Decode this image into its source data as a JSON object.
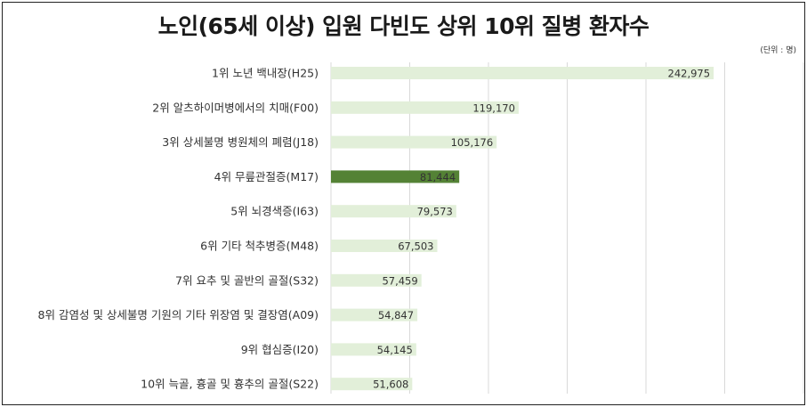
{
  "chart_data": {
    "type": "bar",
    "orientation": "horizontal",
    "title": "노인(65세 이상) 입원 다빈도 상위 10위 질병 환자수",
    "unit_label": "(단위 : 명)",
    "categories": [
      "1위 노년 백내장(H25)",
      "2위 알츠하이머병에서의 치매(F00)",
      "3위 상세불명 병원체의 폐렴(J18)",
      "4위 무릎관절증(M17)",
      "5위 뇌경색증(I63)",
      "6위 기타 척추병증(M48)",
      "7위 요추 및 골반의 골절(S32)",
      "8위 감염성 및 상세불명 기원의 기타 위장염 및 결장염(A09)",
      "9위 협심증(I20)",
      "10위 늑골, 흉골 및 흉추의 골절(S22)"
    ],
    "values": [
      242975,
      119170,
      105176,
      81444,
      79573,
      67503,
      57459,
      54847,
      54145,
      51608
    ],
    "value_labels": [
      "242,975",
      "119,170",
      "105,176",
      "81,444",
      "79,573",
      "67,503",
      "57,459",
      "54,847",
      "54,145",
      "51,608"
    ],
    "highlight_index": 3,
    "xlim": [
      0,
      300000
    ],
    "grid": true,
    "colors": {
      "bar": "#e2efd9",
      "highlight": "#548235",
      "grid": "#d9d9d9",
      "highlight_text": "#ffffff"
    }
  }
}
